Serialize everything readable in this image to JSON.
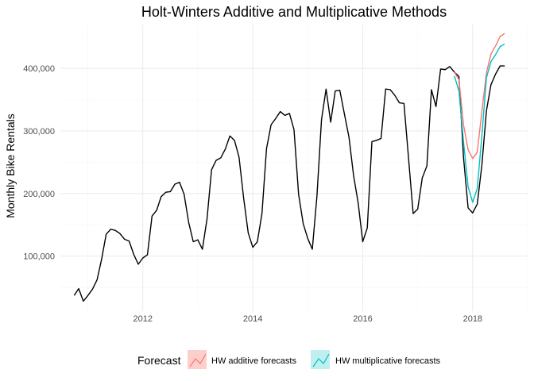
{
  "chart_data": {
    "type": "line",
    "title": "Holt-Winters Additive and Multiplicative Methods",
    "xlabel": "",
    "ylabel": "Monthly Bike Rentals",
    "xlim": [
      2010.5,
      2019.0
    ],
    "ylim": [
      12000,
      470000
    ],
    "x_ticks": [
      2012,
      2014,
      2016,
      2018
    ],
    "x_tick_labels": [
      "2012",
      "2014",
      "2016",
      "2018"
    ],
    "y_ticks": [
      100000,
      200000,
      300000,
      400000
    ],
    "y_tick_labels": [
      "100,000",
      "200,000",
      "300,000",
      "400,000"
    ],
    "grid": true,
    "legend": {
      "title": "Forecast",
      "position": "bottom",
      "entries": [
        {
          "label": "HW additive forecasts",
          "color": "#F8766D",
          "fill": "#F8766D"
        },
        {
          "label": "HW multiplicative forecasts",
          "color": "#00BFC4",
          "fill": "#00BFC4"
        }
      ]
    },
    "series": [
      {
        "kind": "observed",
        "color": "#000000",
        "x": [
          2010.75,
          2010.833,
          2010.917,
          2011.0,
          2011.083,
          2011.167,
          2011.25,
          2011.333,
          2011.417,
          2011.5,
          2011.583,
          2011.667,
          2011.75,
          2011.833,
          2011.917,
          2012.0,
          2012.083,
          2012.167,
          2012.25,
          2012.333,
          2012.417,
          2012.5,
          2012.583,
          2012.667,
          2012.75,
          2012.833,
          2012.917,
          2013.0,
          2013.083,
          2013.167,
          2013.25,
          2013.333,
          2013.417,
          2013.5,
          2013.583,
          2013.667,
          2013.75,
          2013.833,
          2013.917,
          2014.0,
          2014.083,
          2014.167,
          2014.25,
          2014.333,
          2014.417,
          2014.5,
          2014.583,
          2014.667,
          2014.75,
          2014.833,
          2014.917,
          2015.0,
          2015.083,
          2015.167,
          2015.25,
          2015.333,
          2015.417,
          2015.5,
          2015.583,
          2015.667,
          2015.75,
          2015.833,
          2015.917,
          2016.0,
          2016.083,
          2016.167,
          2016.25,
          2016.333,
          2016.417,
          2016.5,
          2016.583,
          2016.667,
          2016.75,
          2016.833,
          2016.917,
          2017.0,
          2017.083,
          2017.167,
          2017.25,
          2017.333,
          2017.417,
          2017.5,
          2017.583,
          2017.667,
          2017.75,
          2017.833,
          2017.917,
          2018.0,
          2018.083,
          2018.167,
          2018.25,
          2018.333,
          2018.417,
          2018.5,
          2018.583
        ],
        "values": [
          37000,
          48000,
          28000,
          37000,
          47000,
          62000,
          95000,
          135000,
          143000,
          141000,
          136000,
          127000,
          124000,
          103000,
          87000,
          97000,
          102000,
          164000,
          173000,
          195000,
          202000,
          203000,
          215000,
          218000,
          199000,
          154000,
          123000,
          126000,
          111000,
          159000,
          238000,
          253000,
          257000,
          271000,
          292000,
          285000,
          258000,
          193000,
          137000,
          114000,
          123000,
          168000,
          272000,
          310000,
          320000,
          331000,
          325000,
          328000,
          302000,
          199000,
          152000,
          128000,
          111000,
          196000,
          318000,
          367000,
          314000,
          364000,
          365000,
          327000,
          290000,
          229000,
          185000,
          123000,
          145000,
          283000,
          285000,
          288000,
          367000,
          366000,
          357000,
          345000,
          344000,
          257000,
          168000,
          175000,
          225000,
          244000,
          366000,
          339000,
          399000,
          398000,
          403000,
          394000,
          387000,
          258000,
          177000,
          169000,
          183000,
          245000,
          332000,
          374000,
          391000,
          404000,
          404000
        ]
      },
      {
        "name": "HW additive forecasts",
        "color": "#F8766D",
        "x": [
          2017.667,
          2017.75,
          2017.833,
          2017.917,
          2018.0,
          2018.083,
          2018.167,
          2018.25,
          2018.333,
          2018.417,
          2018.5,
          2018.583
        ],
        "values": [
          394000,
          382000,
          310000,
          270000,
          256000,
          266000,
          331000,
          393000,
          423000,
          436000,
          451000,
          456000
        ]
      },
      {
        "name": "HW multiplicative forecasts",
        "color": "#00BFC4",
        "x": [
          2017.667,
          2017.75,
          2017.833,
          2017.917,
          2018.0,
          2018.083,
          2018.167,
          2018.25,
          2018.333,
          2018.417,
          2018.5,
          2018.583
        ],
        "values": [
          388000,
          364000,
          283000,
          211000,
          186000,
          208000,
          292000,
          385000,
          411000,
          422000,
          435000,
          439000
        ]
      }
    ]
  }
}
